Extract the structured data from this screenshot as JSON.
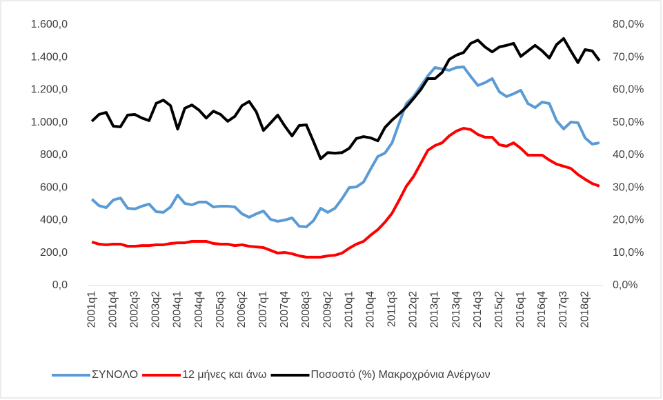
{
  "chart_data": {
    "type": "line",
    "categories": [
      "2001q1",
      null,
      null,
      "2001q4",
      null,
      null,
      "2002q3",
      null,
      null,
      "2003q2",
      null,
      null,
      "2004q1",
      null,
      null,
      "2004q4",
      null,
      null,
      "2005q3",
      null,
      null,
      "2006q2",
      null,
      null,
      "2007q1",
      null,
      null,
      "2007q4",
      null,
      null,
      "2008q3",
      null,
      null,
      "2009q2",
      null,
      null,
      "2010q1",
      null,
      null,
      "2010q4",
      null,
      null,
      "2011q3",
      null,
      null,
      "2012q2",
      null,
      null,
      "2013q1",
      null,
      null,
      "2013q4",
      null,
      null,
      "2014q3",
      null,
      null,
      "2015q2",
      null,
      null,
      "2016q1",
      null,
      null,
      "2016q4",
      null,
      null,
      "2017q3",
      null,
      null,
      "2018q2",
      null,
      null
    ],
    "series": [
      {
        "name": "ΣΥΝΟΛΟ",
        "color": "#5b9bd5",
        "values": [
          530,
          490,
          478,
          525,
          537,
          474,
          470,
          487,
          500,
          453,
          449,
          482,
          555,
          504,
          495,
          512,
          512,
          482,
          487,
          487,
          482,
          440,
          419,
          440,
          457,
          406,
          394,
          402,
          415,
          364,
          360,
          398,
          474,
          449,
          474,
          533,
          601,
          605,
          635,
          715,
          792,
          813,
          876,
          999,
          1117,
          1160,
          1223,
          1287,
          1338,
          1329,
          1321,
          1338,
          1342,
          1283,
          1228,
          1245,
          1270,
          1189,
          1160,
          1177,
          1198,
          1117,
          1092,
          1126,
          1117,
          1012,
          961,
          1003,
          999,
          906,
          868,
          876
        ]
      },
      {
        "name": "12 μήνες και άνω",
        "color": "#ff0000",
        "values": [
          267,
          254,
          250,
          254,
          254,
          241,
          241,
          245,
          245,
          250,
          250,
          258,
          262,
          262,
          271,
          271,
          271,
          258,
          254,
          254,
          245,
          250,
          241,
          237,
          233,
          216,
          199,
          203,
          195,
          182,
          174,
          174,
          174,
          182,
          186,
          199,
          229,
          254,
          271,
          309,
          343,
          389,
          444,
          525,
          610,
          669,
          749,
          830,
          859,
          876,
          919,
          948,
          965,
          957,
          927,
          910,
          910,
          864,
          855,
          876,
          842,
          800,
          800,
          800,
          770,
          745,
          732,
          719,
          681,
          652,
          626,
          610
        ]
      },
      {
        "name": "Ποσοστό (%) Μακροχρόνια Ανέργων",
        "color": "#000000",
        "axis": "y2",
        "values": [
          50.4,
          52.5,
          53.1,
          48.9,
          48.7,
          52.3,
          52.5,
          51.4,
          50.6,
          55.9,
          56.9,
          55.2,
          48.0,
          54.4,
          55.4,
          53.8,
          51.4,
          53.5,
          52.5,
          50.4,
          51.9,
          55.2,
          56.5,
          53.3,
          47.6,
          49.9,
          52.3,
          48.9,
          45.9,
          49.1,
          49.3,
          44.2,
          38.9,
          40.8,
          40.6,
          40.8,
          42.1,
          45.1,
          45.7,
          45.3,
          44.4,
          48.5,
          50.8,
          52.7,
          54.8,
          57.4,
          60.1,
          63.5,
          63.5,
          65.4,
          69.4,
          70.7,
          71.5,
          74.3,
          75.3,
          73.2,
          71.7,
          73.2,
          73.7,
          74.3,
          70.3,
          72.0,
          73.7,
          72.0,
          69.8,
          73.9,
          75.8,
          72.0,
          68.4,
          72.4,
          72.0,
          69.0
        ]
      }
    ],
    "ylim": [
      0,
      1600
    ],
    "yticks": [
      {
        "value": 0,
        "label": "0,0"
      },
      {
        "value": 200,
        "label": "200,0"
      },
      {
        "value": 400,
        "label": "400,0"
      },
      {
        "value": 600,
        "label": "600,0"
      },
      {
        "value": 800,
        "label": "800,0"
      },
      {
        "value": 1000,
        "label": "1.000,0"
      },
      {
        "value": 1200,
        "label": "1.200,0"
      },
      {
        "value": 1400,
        "label": "1.400,0"
      },
      {
        "value": 1600,
        "label": "1.600,0"
      }
    ],
    "y2lim": [
      0,
      80
    ],
    "y2ticks": [
      {
        "value": 0,
        "label": "0,0%"
      },
      {
        "value": 10,
        "label": "10,0%"
      },
      {
        "value": 20,
        "label": "20,0%"
      },
      {
        "value": 30,
        "label": "30,0%"
      },
      {
        "value": 40,
        "label": "40,0%"
      },
      {
        "value": 50,
        "label": "50,0%"
      },
      {
        "value": 60,
        "label": "60,0%"
      },
      {
        "value": 70,
        "label": "70,0%"
      },
      {
        "value": 80,
        "label": "80,0%"
      }
    ],
    "grid": false,
    "legend": "bottom"
  }
}
